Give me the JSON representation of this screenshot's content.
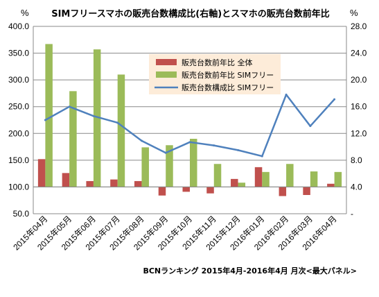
{
  "chart_data": {
    "type": "bar",
    "title": "SIMフリースマホの販売台数構成比(右軸)とスマホの販売台数前年比",
    "left_unit": "%",
    "right_unit": "%",
    "categories": [
      "2015年04月",
      "2015年05月",
      "2015年06月",
      "2015年07月",
      "2015年08月",
      "2015年09月",
      "2015年10月",
      "2015年11月",
      "2015年12月",
      "2016年01月",
      "2016年02月",
      "2016年03月",
      "2016年04月"
    ],
    "left_axis": {
      "ylim": [
        50,
        400
      ],
      "ticks": [
        "50.0",
        "100.0",
        "150.0",
        "200.0",
        "250.0",
        "300.0",
        "350.0",
        "400.0"
      ]
    },
    "right_axis": {
      "ylim": [
        0,
        28
      ],
      "ticks": [
        "-",
        "4.0",
        "8.0",
        "12.0",
        "16.0",
        "20.0",
        "24.0",
        "28.0"
      ]
    },
    "baseline": 100,
    "series": [
      {
        "name": "販売台数前年比 全体",
        "kind": "bar",
        "axis": "left",
        "color": "#c0504d",
        "values": [
          152,
          126,
          111,
          114,
          111,
          84,
          91,
          88,
          115,
          137,
          83,
          85,
          106
        ]
      },
      {
        "name": "販売台数前年比 SIMフリー",
        "kind": "bar",
        "axis": "left",
        "color": "#9bbb59",
        "values": [
          367,
          279,
          357,
          310,
          174,
          178,
          190,
          143,
          108,
          128,
          143,
          129,
          128
        ]
      },
      {
        "name": "販売台数構成比 SIMフリー",
        "kind": "line",
        "axis": "right",
        "color": "#4f81bd",
        "values": [
          14.0,
          16.0,
          14.6,
          13.6,
          10.9,
          9.1,
          10.7,
          10.2,
          9.5,
          8.6,
          17.8,
          13.1,
          17.1
        ]
      }
    ],
    "legend_position": "top-center",
    "grid": true
  },
  "source_note": "BCNランキング 2015年4月-2016年4月 月次<最大パネル>"
}
